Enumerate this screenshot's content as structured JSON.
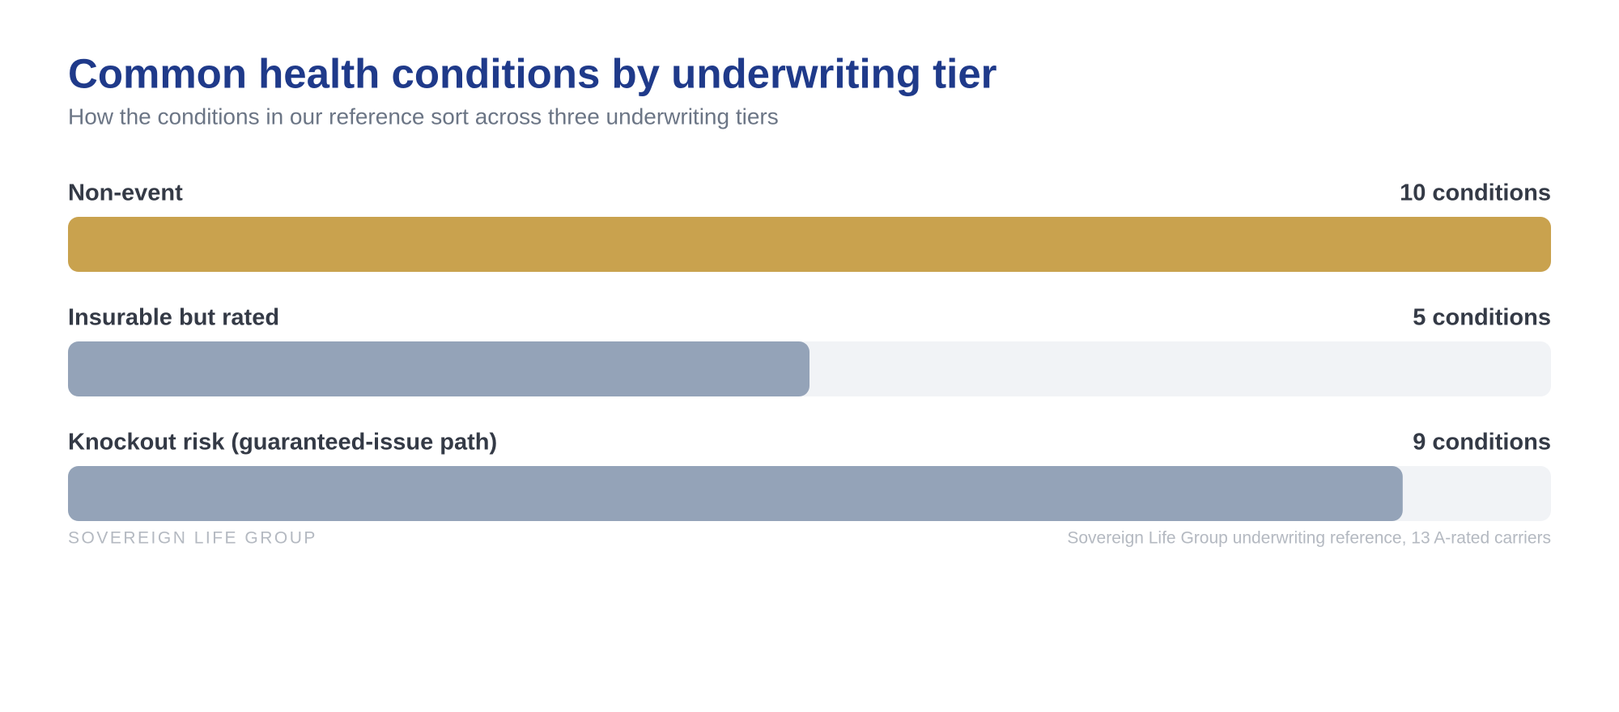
{
  "chart_data": {
    "type": "bar",
    "orientation": "horizontal",
    "title": "Common health conditions by underwriting tier",
    "subtitle": "How the conditions in our reference sort across three underwriting tiers",
    "categories": [
      "Non-event",
      "Insurable but rated",
      "Knockout risk (guaranteed-issue path)"
    ],
    "values": [
      10,
      5,
      9
    ],
    "value_labels": [
      "10 conditions",
      "5 conditions",
      "9 conditions"
    ],
    "colors": [
      "#c9a24e",
      "#94a3b8",
      "#94a3b8"
    ],
    "track_color": "#f1f3f6",
    "xlim": [
      0,
      10
    ],
    "brand": "SOVEREIGN LIFE GROUP",
    "source": "Sovereign Life Group underwriting reference, 13 A-rated carriers"
  }
}
